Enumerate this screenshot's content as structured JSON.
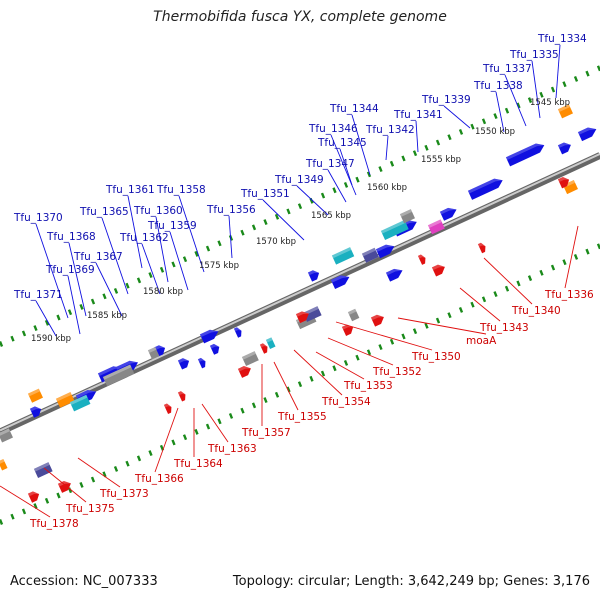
{
  "title": "Thermobifida fusca YX, complete genome",
  "footer": {
    "accession": "Accession: NC_007333",
    "summary": "Topology: circular; Length: 3,642,249 bp; Genes: 3,176"
  },
  "colors": {
    "forward": "#1010e0",
    "reverse": "#e01010",
    "backbone": "#888888",
    "tick": "#1a8a1a"
  },
  "kbp_marks": [
    "1545 kbp",
    "1550 kbp",
    "1555 kbp",
    "1560 kbp",
    "1565 kbp",
    "1570 kbp",
    "1575 kbp",
    "1580 kbp",
    "1585 kbp",
    "1590 kbp"
  ],
  "forward_labels": [
    "Tfu_1334",
    "Tfu_1335",
    "Tfu_1337",
    "Tfu_1338",
    "Tfu_1339",
    "Tfu_1341",
    "Tfu_1342",
    "Tfu_1344",
    "Tfu_1346",
    "Tfu_1345",
    "Tfu_1347",
    "Tfu_1349",
    "Tfu_1351",
    "Tfu_1356",
    "Tfu_1358",
    "Tfu_1361",
    "Tfu_1365",
    "Tfu_1360",
    "Tfu_1359",
    "Tfu_1362",
    "Tfu_1370",
    "Tfu_1368",
    "Tfu_1367",
    "Tfu_1369",
    "Tfu_1371"
  ],
  "reverse_labels": [
    "Tfu_1336",
    "Tfu_1340",
    "Tfu_1343",
    "moaA",
    "Tfu_1350",
    "Tfu_1352",
    "Tfu_1353",
    "Tfu_1354",
    "Tfu_1355",
    "Tfu_1357",
    "Tfu_1363",
    "Tfu_1364",
    "Tfu_1366",
    "Tfu_1373",
    "Tfu_1375",
    "Tfu_1378"
  ]
}
